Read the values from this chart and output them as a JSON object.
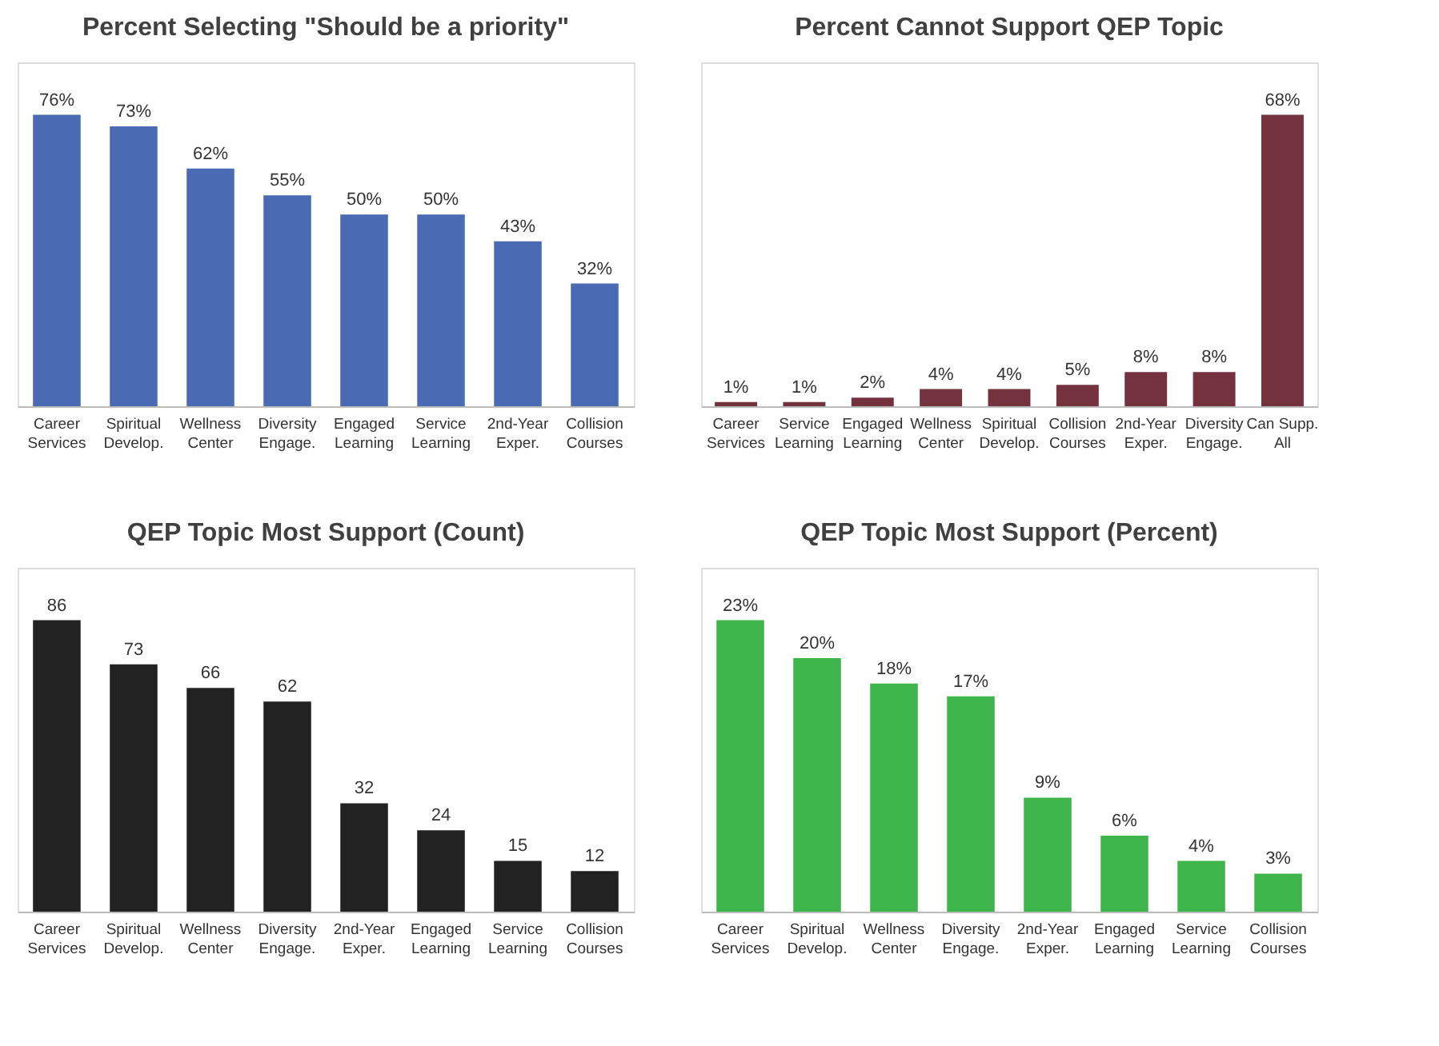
{
  "chart_data": [
    {
      "type": "bar",
      "title": "Percent Selecting \"Should be a priority\"",
      "categories": [
        "Career Services",
        "Spiritual Develop.",
        "Wellness Center",
        "Diversity Engage.",
        "Engaged Learning",
        "Service Learning",
        "2nd-Year Exper.",
        "Collision Courses"
      ],
      "values": [
        76,
        73,
        62,
        55,
        50,
        50,
        43,
        32
      ],
      "value_labels": [
        "76%",
        "73%",
        "62%",
        "55%",
        "50%",
        "50%",
        "43%",
        "32%"
      ],
      "color": "#4a6bb3",
      "tick_labels": "x",
      "grid": false,
      "legend": false
    },
    {
      "type": "bar",
      "title": "Percent Cannot Support QEP Topic",
      "categories": [
        "Career Services",
        "Service Learning",
        "Engaged Learning",
        "Wellness Center",
        "Spiritual Develop.",
        "Collision Courses",
        "2nd-Year Exper.",
        "Diversity Engage.",
        "Can Supp. All"
      ],
      "values": [
        1,
        1,
        2,
        4,
        4,
        5,
        8,
        8,
        68
      ],
      "value_labels": [
        "1%",
        "1%",
        "2%",
        "4%",
        "4%",
        "5%",
        "8%",
        "8%",
        "68%"
      ],
      "color": "#74323f",
      "tick_labels": "x",
      "grid": false,
      "legend": false
    },
    {
      "type": "bar",
      "title": "QEP Topic Most Support (Count)",
      "categories": [
        "Career Services",
        "Spiritual Develop.",
        "Wellness Center",
        "Diversity Engage.",
        "2nd-Year Exper.",
        "Engaged Learning",
        "Service Learning",
        "Collision Courses"
      ],
      "values": [
        86,
        73,
        66,
        62,
        32,
        24,
        15,
        12
      ],
      "data_labels": true,
      "color": "#222222",
      "tick_labels": "x",
      "grid": false,
      "legend": false
    },
    {
      "type": "bar",
      "title": "QEP Topic Most Support (Percent)",
      "categories": [
        "Career Services",
        "Spiritual Develop.",
        "Wellness Center",
        "Diversity Engage.",
        "2nd-Year Exper.",
        "Engaged Learning",
        "Service Learning",
        "Collision Courses"
      ],
      "values": [
        23,
        20,
        18,
        17,
        9,
        6,
        4,
        3
      ],
      "value_labels": [
        "23%",
        "20%",
        "18%",
        "17%",
        "9%",
        "6%",
        "4%",
        "3%"
      ],
      "color": "#3db54a",
      "tick_labels": "x",
      "grid": false,
      "legend": false
    }
  ]
}
